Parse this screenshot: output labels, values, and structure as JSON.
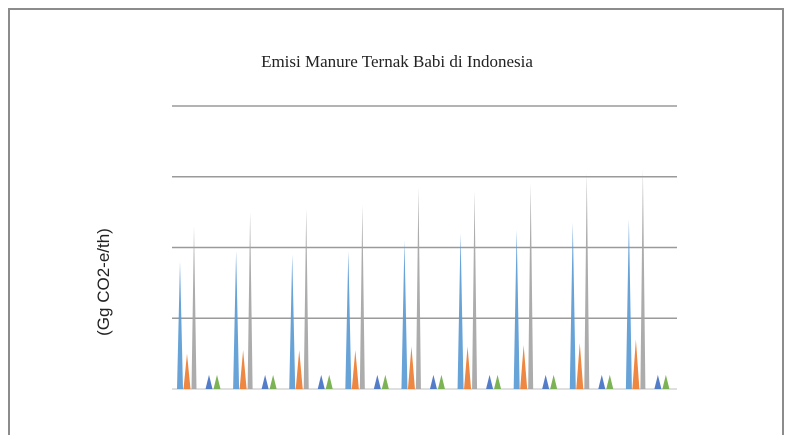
{
  "chart_data": {
    "type": "area",
    "title": "Emisi  Manure Ternak Babi di Indonesia",
    "ylabel": "(Gg CO2-e/th)",
    "grid": true,
    "legend": "none",
    "colors": [
      "#5b9bd5",
      "#ed7d31",
      "#a5a5a5",
      "#4472c4",
      "#70ad47"
    ],
    "groups": [
      {
        "values": [
          1.8,
          0.5,
          2.3,
          0.2,
          0.2
        ]
      },
      {
        "values": [
          1.95,
          0.55,
          2.5,
          0.2,
          0.2
        ]
      },
      {
        "values": [
          1.9,
          0.55,
          2.55,
          0.2,
          0.2
        ]
      },
      {
        "values": [
          1.95,
          0.55,
          2.6,
          0.2,
          0.2
        ]
      },
      {
        "values": [
          2.1,
          0.6,
          2.85,
          0.2,
          0.2
        ]
      },
      {
        "values": [
          2.2,
          0.6,
          2.8,
          0.2,
          0.2
        ]
      },
      {
        "values": [
          2.25,
          0.62,
          2.9,
          0.2,
          0.2
        ]
      },
      {
        "values": [
          2.35,
          0.65,
          3.05,
          0.2,
          0.2
        ]
      },
      {
        "values": [
          2.4,
          0.7,
          3.1,
          0.2,
          0.2
        ]
      }
    ],
    "ylim": [
      0,
      4
    ]
  }
}
